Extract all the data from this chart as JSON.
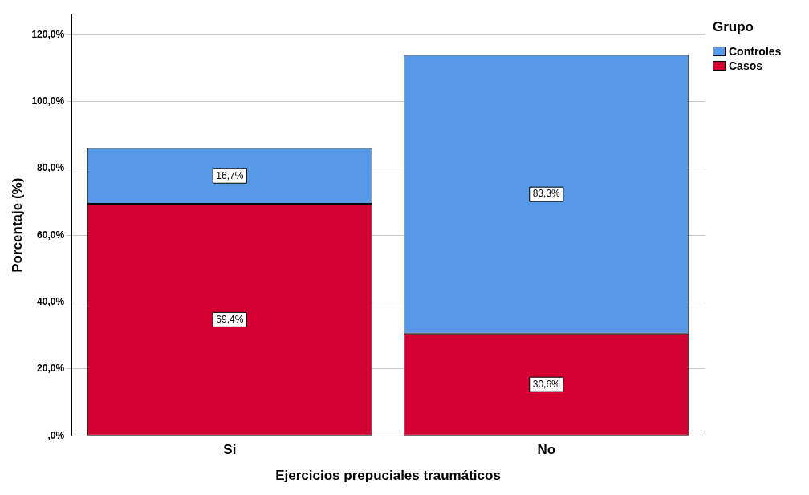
{
  "chart_data": {
    "type": "bar",
    "stacked": true,
    "xlabel": "Ejercicios prepuciales traumáticos",
    "ylabel": "Porcentaje (%)",
    "legend_title": "Grupo",
    "legend": "top right",
    "categories": [
      "Si",
      "No"
    ],
    "series": [
      {
        "name": "Casos",
        "color": "#d50032",
        "values": [
          69.4,
          30.6
        ],
        "value_labels": [
          "69,4%",
          "30,6%"
        ]
      },
      {
        "name": "Controles",
        "color": "#5799e6",
        "values": [
          16.7,
          83.3
        ],
        "value_labels": [
          "16,7%",
          "83,3%"
        ]
      }
    ],
    "ylim": [
      0,
      126
    ],
    "yticks": [
      {
        "value": 0,
        "label": ",0%"
      },
      {
        "value": 20,
        "label": "20,0%"
      },
      {
        "value": 40,
        "label": "40,0%"
      },
      {
        "value": 60,
        "label": "60,0%"
      },
      {
        "value": 80,
        "label": "80,0%"
      },
      {
        "value": 100,
        "label": "100,0%"
      },
      {
        "value": 120,
        "label": "120,0%"
      }
    ],
    "grid": "y"
  }
}
